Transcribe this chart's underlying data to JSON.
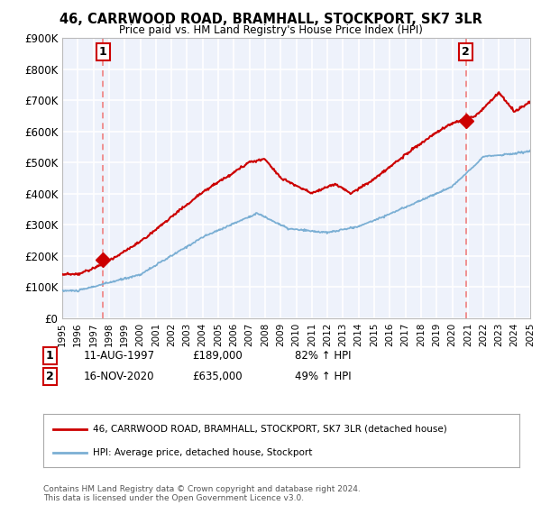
{
  "title": "46, CARRWOOD ROAD, BRAMHALL, STOCKPORT, SK7 3LR",
  "subtitle": "Price paid vs. HM Land Registry's House Price Index (HPI)",
  "legend_label_red": "46, CARRWOOD ROAD, BRAMHALL, STOCKPORT, SK7 3LR (detached house)",
  "legend_label_blue": "HPI: Average price, detached house, Stockport",
  "annotation1_date": "11-AUG-1997",
  "annotation1_price": "£189,000",
  "annotation1_hpi": "82% ↑ HPI",
  "annotation2_date": "16-NOV-2020",
  "annotation2_price": "£635,000",
  "annotation2_hpi": "49% ↑ HPI",
  "footnote": "Contains HM Land Registry data © Crown copyright and database right 2024.\nThis data is licensed under the Open Government Licence v3.0.",
  "ylim": [
    0,
    900000
  ],
  "yticks": [
    0,
    100000,
    200000,
    300000,
    400000,
    500000,
    600000,
    700000,
    800000,
    900000
  ],
  "ytick_labels": [
    "£0",
    "£100K",
    "£200K",
    "£300K",
    "£400K",
    "£500K",
    "£600K",
    "£700K",
    "£800K",
    "£900K"
  ],
  "year_start": 1995,
  "year_end": 2025,
  "marker1_year": 1997.62,
  "marker1_price": 189000,
  "marker2_year": 2020.88,
  "marker2_price": 635000,
  "bg_color": "#eef2fb",
  "grid_color": "#ffffff",
  "red_line_color": "#cc0000",
  "blue_line_color": "#7bafd4",
  "marker_color": "#cc0000",
  "dashed_line_color": "#f08080"
}
